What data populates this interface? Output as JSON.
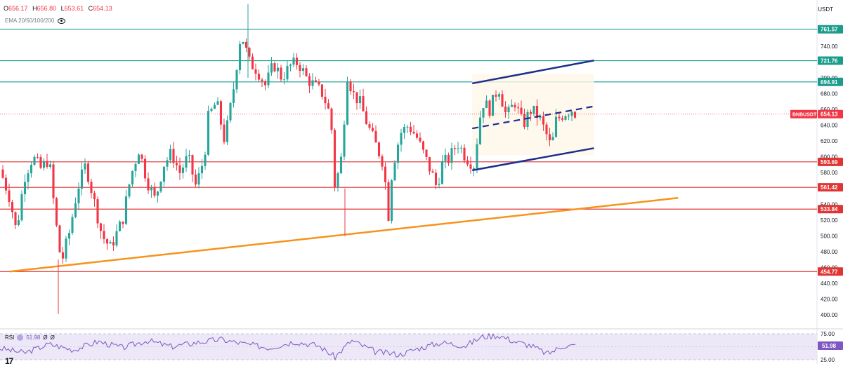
{
  "header": {
    "ohlc": [
      {
        "label": "O",
        "value": "656.17"
      },
      {
        "label": "H",
        "value": "656.80"
      },
      {
        "label": "L",
        "value": "653.61"
      },
      {
        "label": "C",
        "value": "654.13"
      }
    ],
    "indicator_label": "EMA 20/50/100/200",
    "currency": "USDT"
  },
  "symbol": {
    "name": "BNBUSDT",
    "price": "654.13"
  },
  "rsi": {
    "label": "RSI",
    "value": "51.98",
    "extra1": "Ø",
    "extra2": "Ø",
    "badge": "51.98",
    "upper": "75.00",
    "lower": "25.00"
  },
  "logo_text": "17",
  "colors": {
    "up": "#26a69a",
    "down": "#f23645",
    "resistance": "#1b9c8c",
    "support": "#e03535",
    "trend": "#f7931a",
    "channel": "#1b2f8c",
    "rsi_line": "#7e57c2",
    "rsi_band": "#e7e2f5"
  },
  "chart_data": {
    "type": "candlestick",
    "y_ticks": [
      "740.00",
      "720.00",
      "700.00",
      "680.00",
      "660.00",
      "640.00",
      "620.00",
      "600.00",
      "580.00",
      "560.00",
      "540.00",
      "520.00",
      "500.00",
      "480.00",
      "460.00",
      "440.00",
      "420.00",
      "400.00"
    ],
    "ylim": [
      390,
      775
    ],
    "levels": [
      {
        "value": 761.57,
        "label": "761.57",
        "kind": "resistance"
      },
      {
        "value": 721.76,
        "label": "721.76",
        "kind": "resistance"
      },
      {
        "value": 694.91,
        "label": "694.91",
        "kind": "resistance"
      },
      {
        "value": 593.69,
        "label": "593.69",
        "kind": "support"
      },
      {
        "value": 561.42,
        "label": "561.42",
        "kind": "support"
      },
      {
        "value": 533.84,
        "label": "533.84",
        "kind": "support"
      },
      {
        "value": 454.77,
        "label": "454.77",
        "kind": "support"
      }
    ],
    "trendline": {
      "from": [
        0.012,
        454.8
      ],
      "to": [
        0.83,
        548.0
      ]
    },
    "channel": {
      "upper": {
        "from": [
          0.578,
          693
        ],
        "to": [
          0.727,
          722
        ]
      },
      "middle": {
        "from": [
          0.578,
          636
        ],
        "to": [
          0.727,
          664
        ]
      },
      "lower": {
        "from": [
          0.578,
          583
        ],
        "to": [
          0.727,
          611
        ]
      }
    },
    "price_path": [
      [
        0.0,
        584
      ],
      [
        0.012,
        548
      ],
      [
        0.02,
        505
      ],
      [
        0.03,
        575
      ],
      [
        0.04,
        600
      ],
      [
        0.05,
        585
      ],
      [
        0.06,
        598
      ],
      [
        0.068,
        520
      ],
      [
        0.075,
        465
      ],
      [
        0.085,
        505
      ],
      [
        0.095,
        560
      ],
      [
        0.105,
        590
      ],
      [
        0.115,
        545
      ],
      [
        0.125,
        500
      ],
      [
        0.135,
        485
      ],
      [
        0.15,
        520
      ],
      [
        0.16,
        575
      ],
      [
        0.17,
        610
      ],
      [
        0.18,
        570
      ],
      [
        0.19,
        545
      ],
      [
        0.2,
        590
      ],
      [
        0.21,
        605
      ],
      [
        0.22,
        580
      ],
      [
        0.23,
        600
      ],
      [
        0.24,
        562
      ],
      [
        0.25,
        600
      ],
      [
        0.255,
        650
      ],
      [
        0.265,
        670
      ],
      [
        0.275,
        620
      ],
      [
        0.285,
        680
      ],
      [
        0.295,
        758
      ],
      [
        0.305,
        720
      ],
      [
        0.315,
        710
      ],
      [
        0.325,
        690
      ],
      [
        0.335,
        718
      ],
      [
        0.345,
        700
      ],
      [
        0.355,
        715
      ],
      [
        0.365,
        720
      ],
      [
        0.375,
        700
      ],
      [
        0.385,
        690
      ],
      [
        0.395,
        680
      ],
      [
        0.405,
        650
      ],
      [
        0.41,
        560
      ],
      [
        0.418,
        600
      ],
      [
        0.425,
        705
      ],
      [
        0.432,
        680
      ],
      [
        0.44,
        670
      ],
      [
        0.45,
        640
      ],
      [
        0.46,
        615
      ],
      [
        0.47,
        590
      ],
      [
        0.475,
        520
      ],
      [
        0.48,
        585
      ],
      [
        0.49,
        630
      ],
      [
        0.5,
        640
      ],
      [
        0.51,
        625
      ],
      [
        0.52,
        600
      ],
      [
        0.53,
        575
      ],
      [
        0.535,
        560
      ],
      [
        0.54,
        590
      ],
      [
        0.55,
        598
      ],
      [
        0.56,
        618
      ],
      [
        0.57,
        600
      ],
      [
        0.58,
        590
      ],
      [
        0.59,
        670
      ],
      [
        0.6,
        660
      ],
      [
        0.61,
        690
      ],
      [
        0.62,
        650
      ],
      [
        0.63,
        670
      ],
      [
        0.64,
        640
      ],
      [
        0.65,
        660
      ],
      [
        0.66,
        650
      ],
      [
        0.67,
        625
      ],
      [
        0.675,
        610
      ],
      [
        0.68,
        645
      ],
      [
        0.69,
        655
      ],
      [
        0.7,
        660
      ],
      [
        0.705,
        654
      ]
    ],
    "rsi_path": [
      [
        0.0,
        47
      ],
      [
        0.03,
        38
      ],
      [
        0.06,
        55
      ],
      [
        0.09,
        44
      ],
      [
        0.12,
        60
      ],
      [
        0.15,
        48
      ],
      [
        0.18,
        62
      ],
      [
        0.21,
        50
      ],
      [
        0.24,
        58
      ],
      [
        0.27,
        64
      ],
      [
        0.3,
        55
      ],
      [
        0.33,
        48
      ],
      [
        0.36,
        60
      ],
      [
        0.39,
        52
      ],
      [
        0.41,
        30
      ],
      [
        0.43,
        62
      ],
      [
        0.46,
        40
      ],
      [
        0.49,
        35
      ],
      [
        0.51,
        46
      ],
      [
        0.54,
        58
      ],
      [
        0.57,
        52
      ],
      [
        0.59,
        69
      ],
      [
        0.61,
        72
      ],
      [
        0.63,
        60
      ],
      [
        0.65,
        52
      ],
      [
        0.67,
        36
      ],
      [
        0.69,
        52
      ],
      [
        0.705,
        51.98
      ]
    ]
  }
}
